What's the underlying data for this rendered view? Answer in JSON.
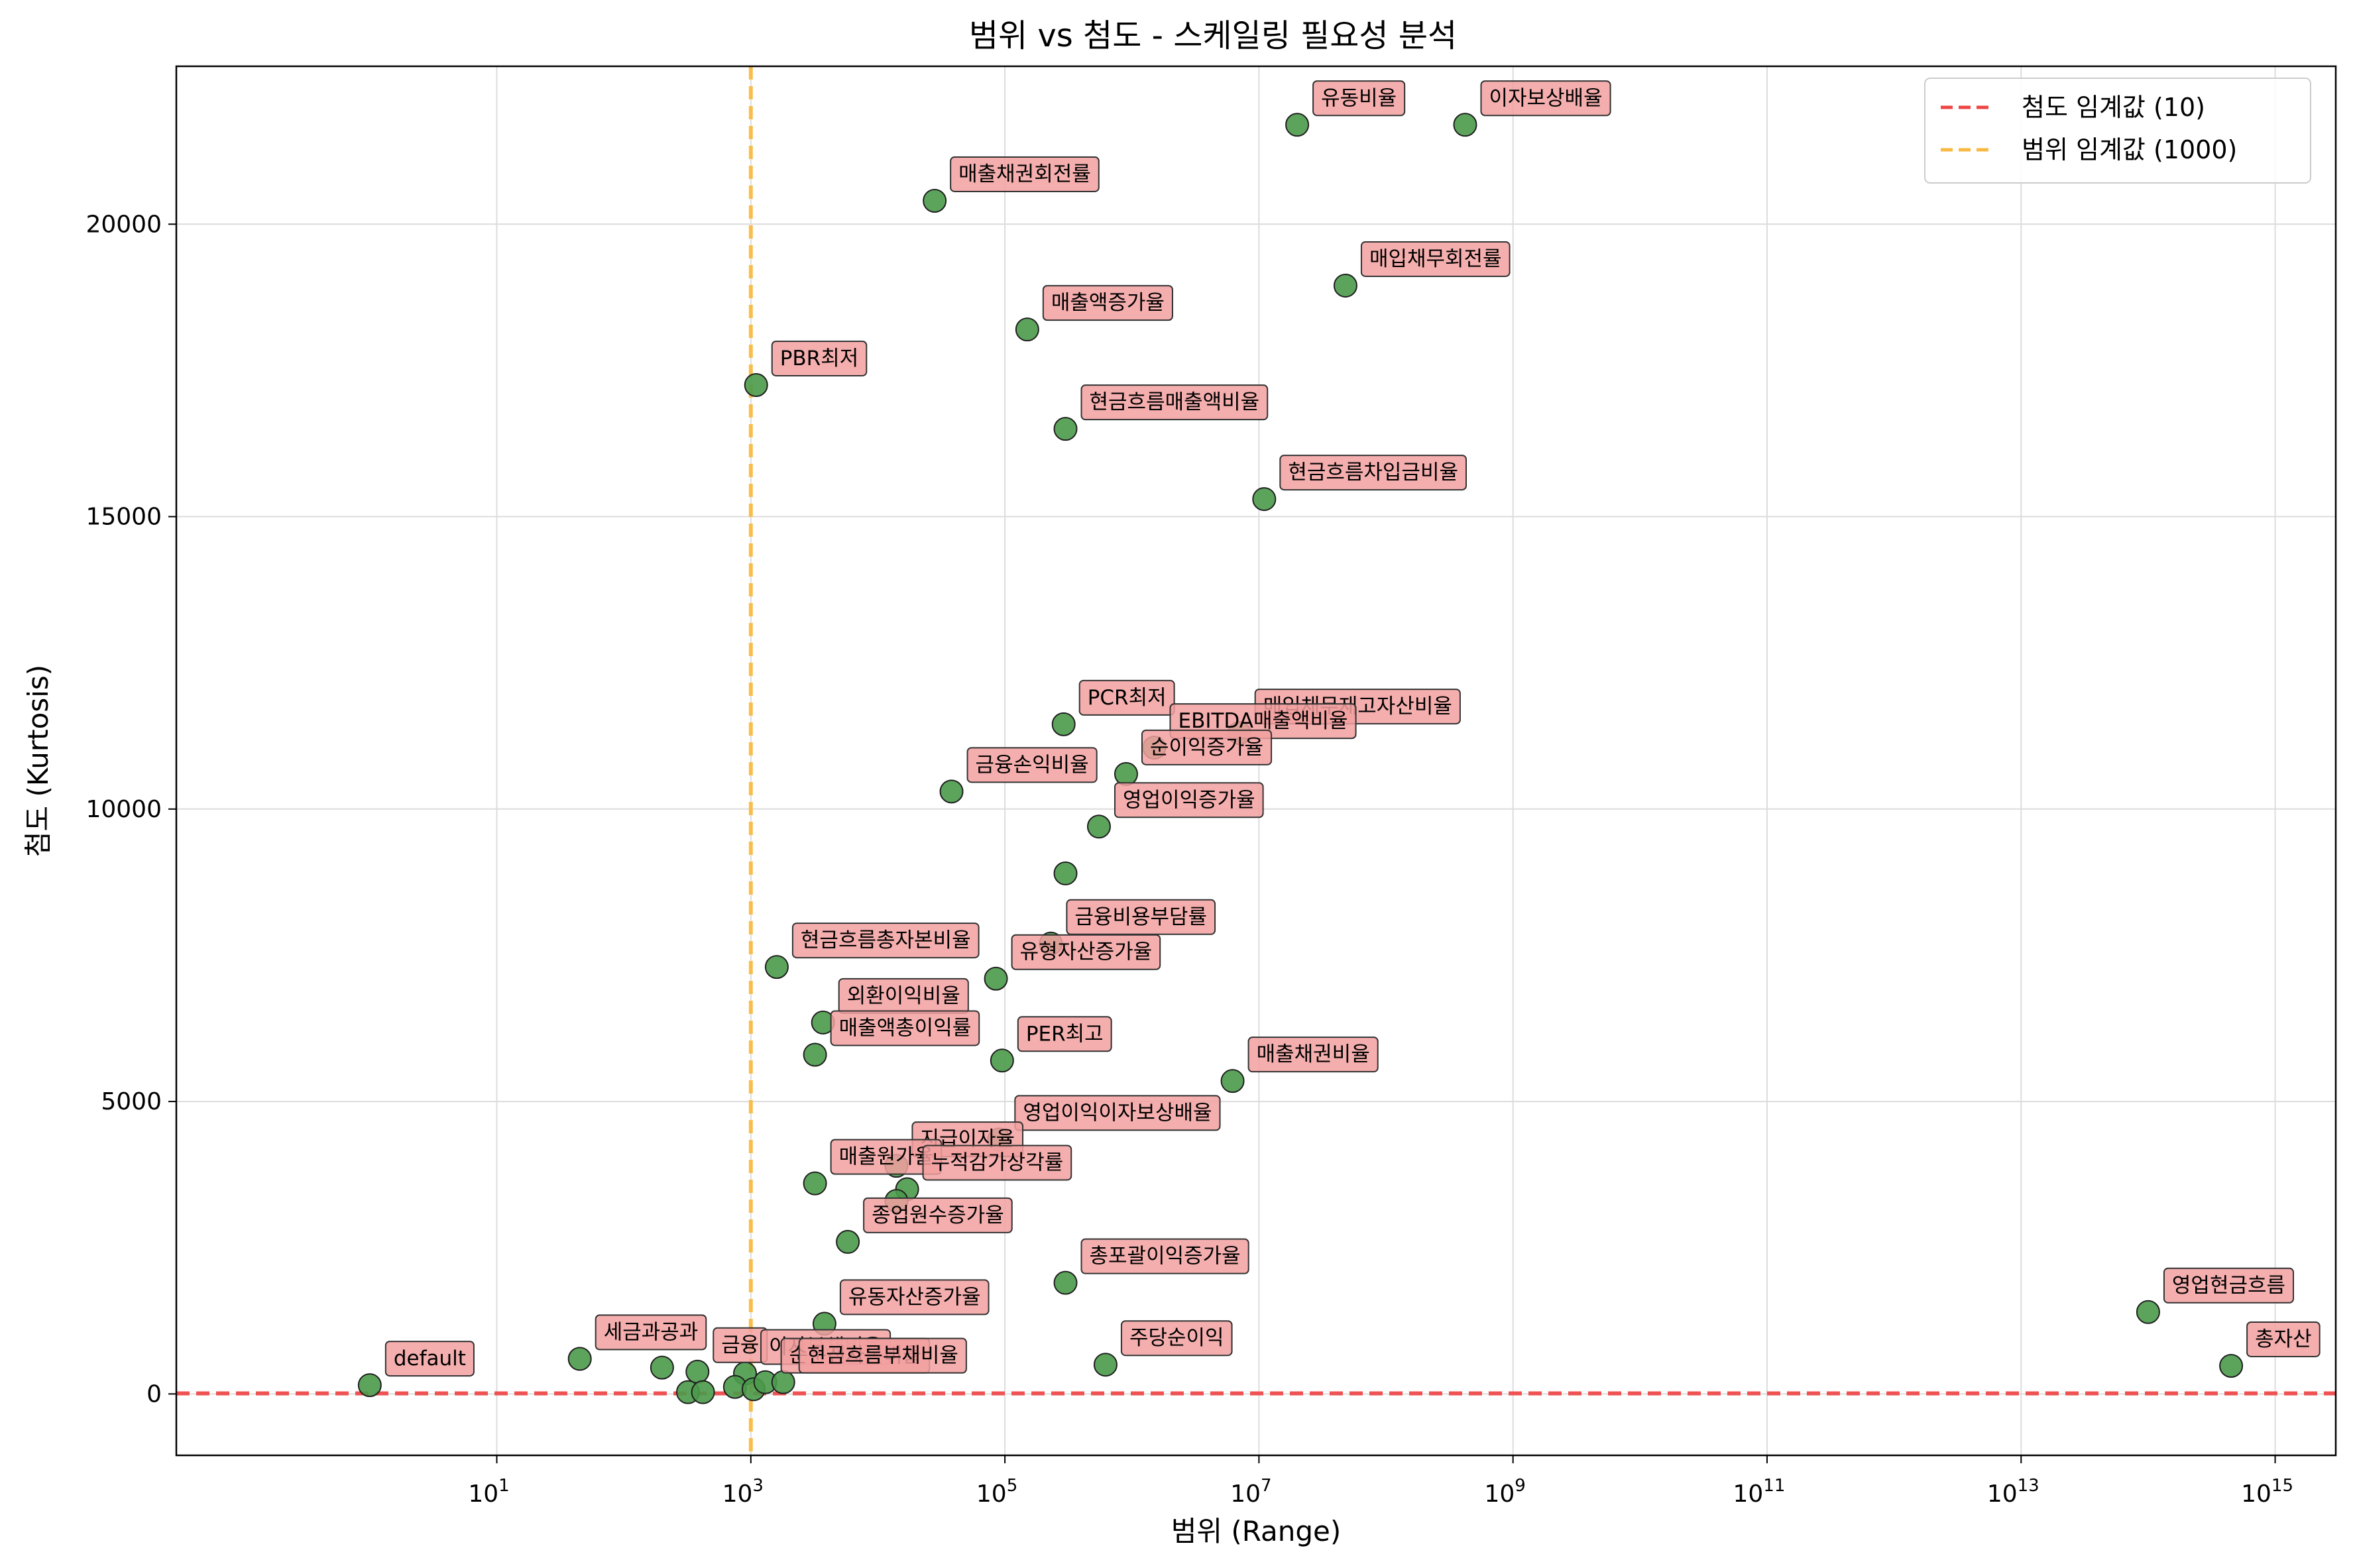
{
  "chart_data": {
    "type": "scatter",
    "title": "범위 vs 첨도 - 스케일링 필요성 분석",
    "xlabel": "범위 (Range)",
    "ylabel": "첨도 (Kurtosis)",
    "x_scale": "log",
    "xlim": [
      0.03,
      3000000000000000.0
    ],
    "ylim": [
      -1050,
      22700
    ],
    "x_ticks": [
      10,
      1000,
      100000,
      10000000,
      1000000000,
      100000000000,
      10000000000000,
      1000000000000000
    ],
    "x_tick_labels": [
      {
        "base": "10",
        "exp": "1"
      },
      {
        "base": "10",
        "exp": "3"
      },
      {
        "base": "10",
        "exp": "5"
      },
      {
        "base": "10",
        "exp": "7"
      },
      {
        "base": "10",
        "exp": "9"
      },
      {
        "base": "10",
        "exp": "11"
      },
      {
        "base": "10",
        "exp": "13"
      },
      {
        "base": "10",
        "exp": "15"
      }
    ],
    "y_ticks": [
      0,
      5000,
      10000,
      15000,
      20000
    ],
    "y_tick_labels": [
      "0",
      "5000",
      "10000",
      "15000",
      "20000"
    ],
    "grid": true,
    "legend_position": "top-right",
    "reference_lines": [
      {
        "orientation": "horizontal",
        "value": 10,
        "label": "첨도 임계값 (10)",
        "color": "#ee4444",
        "style": "dashed"
      },
      {
        "orientation": "vertical",
        "value": 1000,
        "label": "범위 임계값 (1000)",
        "color": "#f9b940",
        "style": "dashed"
      }
    ],
    "point_color": "#4a9a4a",
    "annotation_color": "#f2a0a0",
    "points": [
      {
        "label": "유동비율",
        "x": 20000000,
        "y": 21700
      },
      {
        "label": "이자보상배율",
        "x": 420000000,
        "y": 21700
      },
      {
        "label": "매출채권회전률",
        "x": 28000,
        "y": 20400
      },
      {
        "label": "매입채무회전률",
        "x": 48000000,
        "y": 18950
      },
      {
        "label": "매출액증가율",
        "x": 150000,
        "y": 18200
      },
      {
        "label": "PBR최저",
        "x": 1100,
        "y": 17250
      },
      {
        "label": "현금흐름매출액비율",
        "x": 300000,
        "y": 16500
      },
      {
        "label": "현금흐름차입금비율",
        "x": 11000000,
        "y": 15300
      },
      {
        "label": "PCR최저",
        "x": 290000,
        "y": 11450
      },
      {
        "label": "매입채무재고자산비율",
        "x": 7000000,
        "y": 11300
      },
      {
        "label": "EBITDA매출액비율",
        "x": 1500000,
        "y": 11050
      },
      {
        "label": "금융손익비율",
        "x": 38000,
        "y": 10300
      },
      {
        "label": "순이익증가율",
        "x": 900000,
        "y": 10600
      },
      {
        "label": "영업이익증가율",
        "x": 550000,
        "y": 9700
      },
      {
        "label": "",
        "x": 300000,
        "y": 8900
      },
      {
        "label": "금융비용부담률",
        "x": 230000,
        "y": 7700
      },
      {
        "label": "현금흐름총자본비율",
        "x": 1600,
        "y": 7300
      },
      {
        "label": "유형자산증가율",
        "x": 85000,
        "y": 7100
      },
      {
        "label": "외환이익비율",
        "x": 3700,
        "y": 6350
      },
      {
        "label": "매출액총이익률",
        "x": 3200,
        "y": 5800
      },
      {
        "label": "PER최고",
        "x": 95000,
        "y": 5700
      },
      {
        "label": "매출채권비율",
        "x": 6200000,
        "y": 5350
      },
      {
        "label": "영업이익이자보상배율",
        "x": 90000,
        "y": 4350
      },
      {
        "label": "지급이자율",
        "x": 14000,
        "y": 3900
      },
      {
        "label": "매출원가율",
        "x": 3200,
        "y": 3600
      },
      {
        "label": "누적감가상각률",
        "x": 17000,
        "y": 3500
      },
      {
        "label": "",
        "x": 14000,
        "y": 3300
      },
      {
        "label": "종업원수증가율",
        "x": 5800,
        "y": 2600
      },
      {
        "label": "총포괄이익증가율",
        "x": 300000,
        "y": 1900
      },
      {
        "label": "유동자산증가율",
        "x": 3800,
        "y": 1200
      },
      {
        "label": "영업현금흐름",
        "x": 100000000000000,
        "y": 1400
      },
      {
        "label": "주당순이익",
        "x": 620000,
        "y": 500
      },
      {
        "label": "총자산",
        "x": 450000000000000,
        "y": 480
      },
      {
        "label": "default",
        "x": 1.0,
        "y": 150
      },
      {
        "label": "세금과공과",
        "x": 45,
        "y": 600
      },
      {
        "label": "",
        "x": 200,
        "y": 450
      },
      {
        "label": "금융",
        "x": 380,
        "y": 380
      },
      {
        "label": "이자부채비율",
        "x": 900,
        "y": 350
      },
      {
        "label": "",
        "x": 320,
        "y": 30
      },
      {
        "label": "",
        "x": 420,
        "y": 30
      },
      {
        "label": "",
        "x": 750,
        "y": 120
      },
      {
        "label": "",
        "x": 1050,
        "y": 80
      },
      {
        "label": "순운전자본비율",
        "x": 1300,
        "y": 200
      },
      {
        "label": "현금흐름부채비율",
        "x": 1800,
        "y": 200
      }
    ]
  }
}
